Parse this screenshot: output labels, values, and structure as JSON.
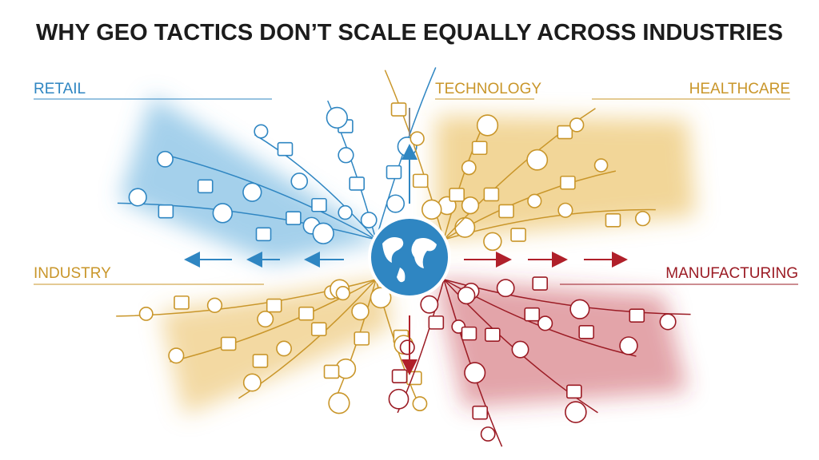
{
  "title": "WHY GEO TACTICS DON’T SCALE EQUALLY ACROSS INDUSTRIES",
  "sectors": [
    {
      "label": "RETAIL"
    },
    {
      "label": "TECHNOLOGY"
    },
    {
      "label": "HEALTHCARE"
    },
    {
      "label": "INDUSTRY"
    },
    {
      "label": "MANUFACTURING"
    }
  ]
}
